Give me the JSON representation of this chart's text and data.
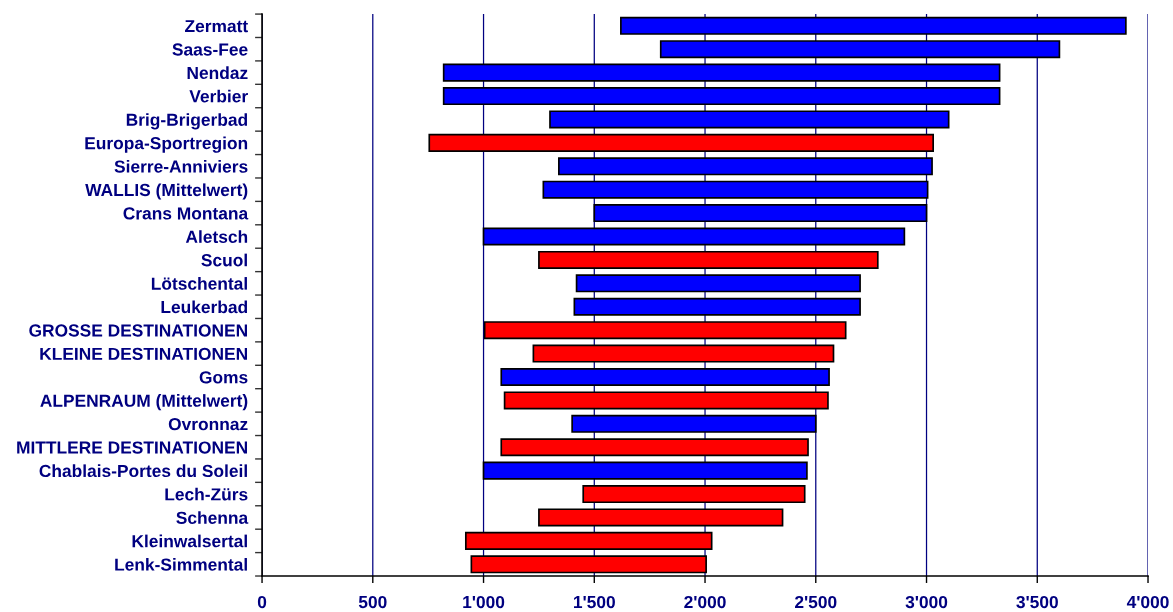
{
  "chart_data": {
    "type": "bar",
    "orientation": "horizontal",
    "categories": [
      "Zermatt",
      "Saas-Fee",
      "Nendaz",
      "Verbier",
      "Brig-Brigerbad",
      "Europa-Sportregion",
      "Sierre-Anniviers",
      "WALLIS (Mittelwert)",
      "Crans Montana",
      "Aletsch",
      "Scuol",
      "Lötschental",
      "Leukerbad",
      "GROSSE DESTINATIONEN",
      "KLEINE DESTINATIONEN",
      "Goms",
      "ALPENRAUM (Mittelwert)",
      "Ovronnaz",
      "MITTLERE DESTINATIONEN",
      "Chablais-Portes du Soleil",
      "Lech-Zürs",
      "Schenna",
      "Kleinwalsertal",
      "Lenk-Simmental"
    ],
    "base": [
      1620,
      1800,
      820,
      820,
      1300,
      755,
      1340,
      1270,
      1500,
      1000,
      1250,
      1420,
      1410,
      1005,
      1225,
      1080,
      1095,
      1400,
      1080,
      1000,
      1450,
      1250,
      920,
      945
    ],
    "values": [
      2280,
      1800,
      2510,
      2510,
      1800,
      2275,
      1685,
      1735,
      1500,
      1900,
      1530,
      1280,
      1290,
      1630,
      1355,
      1480,
      1460,
      1100,
      1385,
      1460,
      1000,
      1100,
      1110,
      1060
    ],
    "colors": [
      "#0000ff",
      "#0000ff",
      "#0000ff",
      "#0000ff",
      "#0000ff",
      "#ff0000",
      "#0000ff",
      "#0000ff",
      "#0000ff",
      "#0000ff",
      "#ff0000",
      "#0000ff",
      "#0000ff",
      "#ff0000",
      "#ff0000",
      "#0000ff",
      "#ff0000",
      "#0000ff",
      "#ff0000",
      "#0000ff",
      "#ff0000",
      "#ff0000",
      "#ff0000",
      "#ff0000"
    ],
    "xlim": [
      0,
      4000
    ],
    "xticks": [
      0,
      500,
      {
        "value": 1000,
        "label": "1'000"
      },
      {
        "value": 1500,
        "label": "1'500"
      },
      {
        "value": 2000,
        "label": "2'000"
      },
      {
        "value": 2500,
        "label": "2'500"
      },
      {
        "value": 3000,
        "label": "3'000"
      },
      {
        "value": 3500,
        "label": "3'500"
      },
      {
        "value": 4000,
        "label": "4'000"
      }
    ],
    "grid": "x"
  }
}
